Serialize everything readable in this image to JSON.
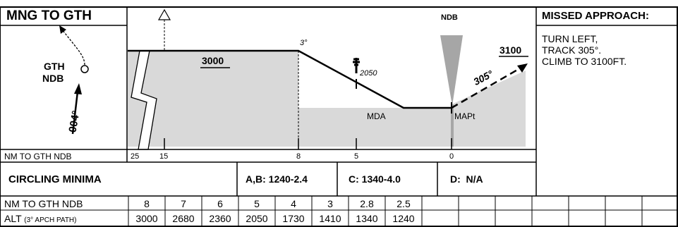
{
  "route": {
    "title": "MNG TO GTH",
    "fix_line1": "GTH",
    "fix_line2": "NDB",
    "inbound_track": "004°"
  },
  "profile": {
    "alt_initial": "3000",
    "glide_angle": "3°",
    "stepdown_alt": "2050",
    "mda_label": "MDA",
    "mapt_label": "MAPt",
    "ndb_label": "NDB",
    "missed_alt": "3100",
    "missed_track": "305°"
  },
  "distance_axis": {
    "label": "NM TO GTH NDB",
    "ticks": [
      "25",
      "15",
      "8",
      "5",
      "0"
    ]
  },
  "missed_approach": {
    "title": "MISSED APPROACH:",
    "line1": "TURN LEFT,",
    "line2": "TRACK 305°.",
    "line3": "CLIMB TO 3100FT."
  },
  "circling": {
    "title": "CIRCLING MINIMA",
    "ab": "A,B: 1240-2.4",
    "c": "C: 1340-4.0",
    "d": "D:  N/A"
  },
  "table": {
    "row1_label": "NM TO GTH NDB",
    "row2_label_main": "ALT",
    "row2_label_sub": "(3° APCH PATH)",
    "distances": [
      "8",
      "7",
      "6",
      "5",
      "4",
      "3",
      "2.8",
      "2.5"
    ],
    "altitudes": [
      "3000",
      "2680",
      "2360",
      "2050",
      "1730",
      "1410",
      "1340",
      "1240"
    ]
  }
}
